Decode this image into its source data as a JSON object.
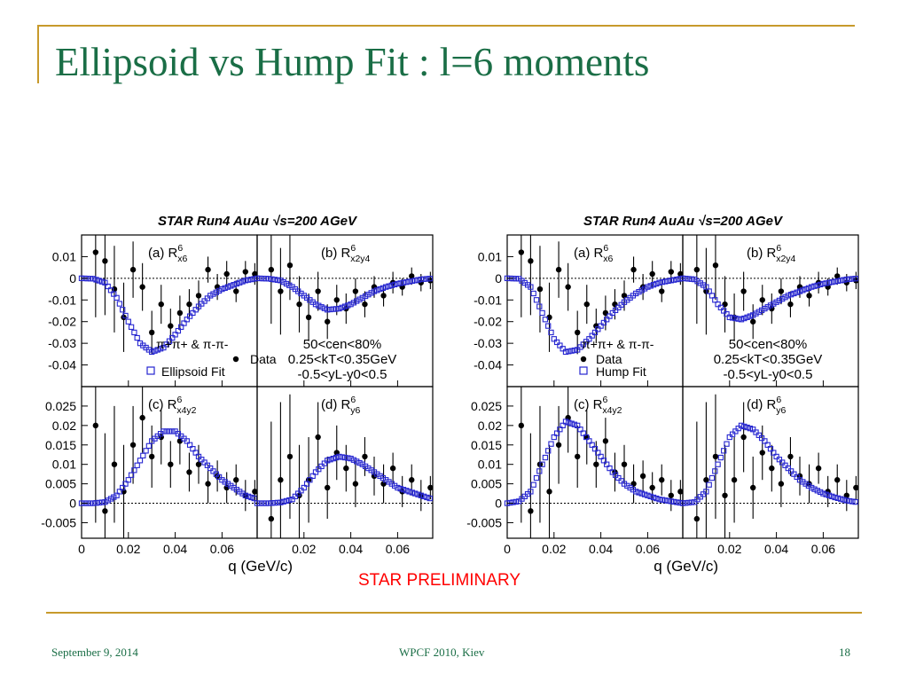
{
  "slide": {
    "title": "Ellipsoid vs Hump Fit : l=6 moments",
    "footer_date": "September 9, 2014",
    "footer_conference": "WPCF 2010, Kiev",
    "footer_page": "18",
    "preliminary": "STAR PRELIMINARY"
  },
  "colors": {
    "accent": "#c79a2b",
    "title": "#1a6e46",
    "fit": "#2626d0",
    "data": "#000000",
    "prelim": "#ff0000"
  },
  "chart_data": [
    {
      "type": "scatter",
      "title": "STAR Run4 AuAu √s=200 AGeV",
      "xlabel": "q (GeV/c)",
      "x_ticks": [
        "0",
        "0.02",
        "0.04",
        "0.06"
      ],
      "cuts": [
        "50<cen<80%",
        "0.25<kT<0.35GeV",
        "-0.5<yL-y0<0.5"
      ],
      "pair_label": "π+π+ & π-π-",
      "legend": [
        "Data",
        "Ellipsoid Fit"
      ],
      "panels": [
        {
          "label": "(a) R",
          "sup": "6",
          "sub": "x6",
          "xlim": [
            0,
            0.075
          ],
          "ylim": [
            -0.05,
            0.02
          ],
          "y_ticks": [
            0.01,
            0,
            -0.01,
            -0.02,
            -0.03,
            -0.04
          ],
          "fit": {
            "x": [
              0,
              0.005,
              0.01,
              0.015,
              0.02,
              0.025,
              0.03,
              0.035,
              0.04,
              0.045,
              0.05,
              0.055,
              0.06,
              0.065,
              0.07,
              0.075
            ],
            "y": [
              0,
              -0.0002,
              -0.002,
              -0.009,
              -0.02,
              -0.03,
              -0.034,
              -0.032,
              -0.026,
              -0.019,
              -0.013,
              -0.008,
              -0.005,
              -0.003,
              -0.001,
              0
            ]
          },
          "data": {
            "x": [
              0.006,
              0.01,
              0.014,
              0.018,
              0.022,
              0.026,
              0.03,
              0.034,
              0.038,
              0.042,
              0.046,
              0.05,
              0.054,
              0.058,
              0.062,
              0.066,
              0.07,
              0.074
            ],
            "y": [
              0.012,
              0.008,
              -0.005,
              -0.018,
              0.004,
              -0.004,
              -0.025,
              -0.012,
              -0.022,
              -0.016,
              -0.012,
              -0.008,
              0.004,
              -0.004,
              0.002,
              -0.006,
              0.003,
              0.002
            ],
            "err": [
              0.03,
              0.025,
              0.02,
              0.016,
              0.013,
              0.011,
              0.01,
              0.009,
              0.008,
              0.008,
              0.007,
              0.007,
              0.006,
              0.006,
              0.006,
              0.005,
              0.005,
              0.005
            ]
          }
        },
        {
          "label": "(b) R",
          "sup": "6",
          "sub": "x2y4",
          "xlim": [
            0,
            0.075
          ],
          "ylim": [
            -0.05,
            0.02
          ],
          "fit": {
            "x": [
              0,
              0.005,
              0.01,
              0.015,
              0.02,
              0.025,
              0.03,
              0.035,
              0.04,
              0.045,
              0.05,
              0.055,
              0.06,
              0.065,
              0.07,
              0.075
            ],
            "y": [
              0,
              -0.0002,
              -0.001,
              -0.004,
              -0.008,
              -0.012,
              -0.0145,
              -0.014,
              -0.012,
              -0.009,
              -0.006,
              -0.004,
              -0.0025,
              -0.0015,
              -0.0005,
              0
            ]
          },
          "data": {
            "x": [
              0.006,
              0.01,
              0.014,
              0.018,
              0.022,
              0.026,
              0.03,
              0.034,
              0.038,
              0.042,
              0.046,
              0.05,
              0.054,
              0.058,
              0.062,
              0.066,
              0.07,
              0.074
            ],
            "y": [
              0.004,
              -0.006,
              0.006,
              -0.012,
              -0.018,
              -0.006,
              -0.02,
              -0.01,
              -0.014,
              -0.006,
              -0.012,
              -0.004,
              -0.008,
              -0.002,
              -0.004,
              0.001,
              -0.002,
              -0.001
            ],
            "err": [
              0.025,
              0.02,
              0.016,
              0.013,
              0.011,
              0.009,
              0.008,
              0.007,
              0.007,
              0.006,
              0.006,
              0.005,
              0.005,
              0.005,
              0.004,
              0.004,
              0.004,
              0.004
            ]
          }
        },
        {
          "label": "(c) R",
          "sup": "6",
          "sub": "x4y2",
          "xlim": [
            0,
            0.075
          ],
          "ylim": [
            -0.009,
            0.03
          ],
          "y_ticks": [
            0.025,
            0.02,
            0.015,
            0.01,
            0.005,
            0,
            -0.005
          ],
          "fit": {
            "x": [
              0,
              0.005,
              0.01,
              0.015,
              0.02,
              0.025,
              0.03,
              0.035,
              0.04,
              0.045,
              0.05,
              0.055,
              0.06,
              0.065,
              0.07,
              0.075
            ],
            "y": [
              0,
              0,
              0.0003,
              0.002,
              0.006,
              0.011,
              0.016,
              0.0185,
              0.0185,
              0.016,
              0.012,
              0.009,
              0.006,
              0.004,
              0.002,
              0.001
            ]
          },
          "data": {
            "x": [
              0.006,
              0.01,
              0.014,
              0.018,
              0.022,
              0.026,
              0.03,
              0.034,
              0.038,
              0.042,
              0.046,
              0.05,
              0.054,
              0.058,
              0.062,
              0.066,
              0.07,
              0.074
            ],
            "y": [
              0.02,
              -0.002,
              0.01,
              0.003,
              0.015,
              0.022,
              0.012,
              0.017,
              0.01,
              0.016,
              0.008,
              0.01,
              0.005,
              0.007,
              0.004,
              0.006,
              0.002,
              0.003
            ],
            "err": [
              0.025,
              0.02,
              0.015,
              0.012,
              0.01,
              0.009,
              0.008,
              0.007,
              0.006,
              0.006,
              0.005,
              0.005,
              0.005,
              0.004,
              0.004,
              0.004,
              0.004,
              0.003
            ]
          }
        },
        {
          "label": "(d) R",
          "sup": "6",
          "sub": "y6",
          "xlim": [
            0,
            0.075
          ],
          "ylim": [
            -0.009,
            0.03
          ],
          "fit": {
            "x": [
              0,
              0.005,
              0.01,
              0.015,
              0.02,
              0.025,
              0.03,
              0.035,
              0.04,
              0.045,
              0.05,
              0.055,
              0.06,
              0.065,
              0.07,
              0.075
            ],
            "y": [
              0,
              0,
              0.0002,
              0.001,
              0.004,
              0.008,
              0.011,
              0.012,
              0.0115,
              0.01,
              0.008,
              0.006,
              0.004,
              0.003,
              0.002,
              0.001
            ]
          },
          "data": {
            "x": [
              0.006,
              0.01,
              0.014,
              0.018,
              0.022,
              0.026,
              0.03,
              0.034,
              0.038,
              0.042,
              0.046,
              0.05,
              0.054,
              0.058,
              0.062,
              0.066,
              0.07,
              0.074
            ],
            "y": [
              -0.004,
              0.006,
              0.012,
              0.002,
              0.006,
              0.017,
              0.004,
              0.013,
              0.009,
              0.005,
              0.012,
              0.007,
              0.005,
              0.009,
              0.003,
              0.006,
              0.002,
              0.004
            ],
            "err": [
              0.025,
              0.02,
              0.016,
              0.013,
              0.011,
              0.009,
              0.008,
              0.007,
              0.006,
              0.006,
              0.005,
              0.005,
              0.005,
              0.004,
              0.004,
              0.004,
              0.004,
              0.003
            ]
          }
        }
      ]
    },
    {
      "type": "scatter",
      "title": "STAR Run4 AuAu √s=200 AGeV",
      "xlabel": "q (GeV/c)",
      "x_ticks": [
        "0",
        "0.02",
        "0.04",
        "0.06"
      ],
      "cuts": [
        "50<cen<80%",
        "0.25<kT<0.35GeV",
        "-0.5<yL-y0<0.5"
      ],
      "pair_label": "π+π+ & π-π-",
      "legend": [
        "Data",
        "Hump Fit"
      ],
      "panels": [
        {
          "label": "(a) R",
          "sup": "6",
          "sub": "x6",
          "xlim": [
            0,
            0.075
          ],
          "ylim": [
            -0.05,
            0.02
          ],
          "y_ticks": [
            0.01,
            0,
            -0.01,
            -0.02,
            -0.03,
            -0.04
          ],
          "fit": {
            "x": [
              0,
              0.005,
              0.01,
              0.015,
              0.02,
              0.025,
              0.03,
              0.035,
              0.04,
              0.045,
              0.05,
              0.055,
              0.06,
              0.065,
              0.07,
              0.075
            ],
            "y": [
              0,
              -0.0002,
              -0.004,
              -0.016,
              -0.028,
              -0.034,
              -0.033,
              -0.028,
              -0.022,
              -0.016,
              -0.011,
              -0.007,
              -0.004,
              -0.002,
              -0.001,
              0
            ]
          },
          "data": {
            "x": [
              0.006,
              0.01,
              0.014,
              0.018,
              0.022,
              0.026,
              0.03,
              0.034,
              0.038,
              0.042,
              0.046,
              0.05,
              0.054,
              0.058,
              0.062,
              0.066,
              0.07,
              0.074
            ],
            "y": [
              0.012,
              0.008,
              -0.005,
              -0.018,
              0.004,
              -0.004,
              -0.025,
              -0.012,
              -0.022,
              -0.016,
              -0.012,
              -0.008,
              0.004,
              -0.004,
              0.002,
              -0.006,
              0.003,
              0.002
            ],
            "err": [
              0.03,
              0.025,
              0.02,
              0.016,
              0.013,
              0.011,
              0.01,
              0.009,
              0.008,
              0.008,
              0.007,
              0.007,
              0.006,
              0.006,
              0.006,
              0.005,
              0.005,
              0.005
            ]
          }
        },
        {
          "label": "(b) R",
          "sup": "6",
          "sub": "x2y4",
          "xlim": [
            0,
            0.075
          ],
          "ylim": [
            -0.05,
            0.02
          ],
          "fit": {
            "x": [
              0,
              0.005,
              0.01,
              0.015,
              0.02,
              0.025,
              0.03,
              0.035,
              0.04,
              0.045,
              0.05,
              0.055,
              0.06,
              0.065,
              0.07,
              0.075
            ],
            "y": [
              0,
              -0.0005,
              -0.004,
              -0.012,
              -0.018,
              -0.019,
              -0.017,
              -0.014,
              -0.011,
              -0.008,
              -0.006,
              -0.004,
              -0.0025,
              -0.0015,
              -0.0005,
              0
            ]
          },
          "data": {
            "x": [
              0.006,
              0.01,
              0.014,
              0.018,
              0.022,
              0.026,
              0.03,
              0.034,
              0.038,
              0.042,
              0.046,
              0.05,
              0.054,
              0.058,
              0.062,
              0.066,
              0.07,
              0.074
            ],
            "y": [
              0.004,
              -0.006,
              0.006,
              -0.012,
              -0.018,
              -0.006,
              -0.02,
              -0.01,
              -0.014,
              -0.006,
              -0.012,
              -0.004,
              -0.008,
              -0.002,
              -0.004,
              0.001,
              -0.002,
              -0.001
            ],
            "err": [
              0.025,
              0.02,
              0.016,
              0.013,
              0.011,
              0.009,
              0.008,
              0.007,
              0.007,
              0.006,
              0.006,
              0.005,
              0.005,
              0.005,
              0.004,
              0.004,
              0.004,
              0.004
            ]
          }
        },
        {
          "label": "(c) R",
          "sup": "6",
          "sub": "x4y2",
          "xlim": [
            0,
            0.075
          ],
          "ylim": [
            -0.009,
            0.03
          ],
          "y_ticks": [
            0.025,
            0.02,
            0.015,
            0.01,
            0.005,
            0,
            -0.005
          ],
          "fit": {
            "x": [
              0,
              0.005,
              0.01,
              0.015,
              0.02,
              0.025,
              0.03,
              0.035,
              0.04,
              0.045,
              0.05,
              0.055,
              0.06,
              0.065,
              0.07,
              0.075
            ],
            "y": [
              0,
              0.0005,
              0.003,
              0.01,
              0.017,
              0.021,
              0.02,
              0.016,
              0.012,
              0.008,
              0.005,
              0.003,
              0.002,
              0.001,
              0.0005,
              0
            ]
          },
          "data": {
            "x": [
              0.006,
              0.01,
              0.014,
              0.018,
              0.022,
              0.026,
              0.03,
              0.034,
              0.038,
              0.042,
              0.046,
              0.05,
              0.054,
              0.058,
              0.062,
              0.066,
              0.07,
              0.074
            ],
            "y": [
              0.02,
              -0.002,
              0.01,
              0.003,
              0.015,
              0.022,
              0.012,
              0.017,
              0.01,
              0.016,
              0.008,
              0.01,
              0.005,
              0.007,
              0.004,
              0.006,
              0.002,
              0.003
            ],
            "err": [
              0.025,
              0.02,
              0.015,
              0.012,
              0.01,
              0.009,
              0.008,
              0.007,
              0.006,
              0.006,
              0.005,
              0.005,
              0.005,
              0.004,
              0.004,
              0.004,
              0.004,
              0.003
            ]
          }
        },
        {
          "label": "(d) R",
          "sup": "6",
          "sub": "y6",
          "xlim": [
            0,
            0.075
          ],
          "ylim": [
            -0.009,
            0.03
          ],
          "fit": {
            "x": [
              0,
              0.005,
              0.01,
              0.015,
              0.02,
              0.025,
              0.03,
              0.035,
              0.04,
              0.045,
              0.05,
              0.055,
              0.06,
              0.065,
              0.07,
              0.075
            ],
            "y": [
              0,
              0.0003,
              0.003,
              0.01,
              0.017,
              0.02,
              0.019,
              0.016,
              0.012,
              0.009,
              0.006,
              0.004,
              0.0025,
              0.0015,
              0.0007,
              0.0002
            ]
          },
          "data": {
            "x": [
              0.006,
              0.01,
              0.014,
              0.018,
              0.022,
              0.026,
              0.03,
              0.034,
              0.038,
              0.042,
              0.046,
              0.05,
              0.054,
              0.058,
              0.062,
              0.066,
              0.07,
              0.074
            ],
            "y": [
              -0.004,
              0.006,
              0.012,
              0.002,
              0.006,
              0.017,
              0.004,
              0.013,
              0.009,
              0.005,
              0.012,
              0.007,
              0.005,
              0.009,
              0.003,
              0.006,
              0.002,
              0.004
            ],
            "err": [
              0.025,
              0.02,
              0.016,
              0.013,
              0.011,
              0.009,
              0.008,
              0.007,
              0.006,
              0.006,
              0.005,
              0.005,
              0.005,
              0.004,
              0.004,
              0.004,
              0.004,
              0.003
            ]
          }
        }
      ]
    }
  ]
}
